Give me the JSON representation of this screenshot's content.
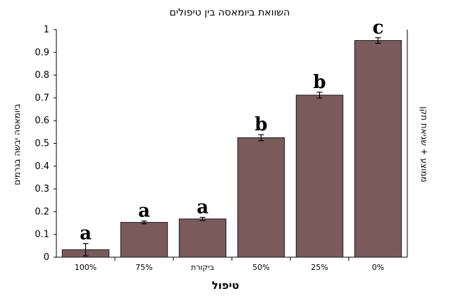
{
  "chart_data": {
    "type": "bar",
    "title": "השוואת ביומאסה בין טיפולים",
    "xlabel": "טיפול",
    "ylabel": "ביומאסה יבשה בגרמים",
    "ylabel_right": "ממוצע + שגיאת תקן",
    "categories": [
      "100%",
      "75%",
      "ביקורת",
      "50%",
      "25%",
      "0%"
    ],
    "values": [
      0.033,
      0.153,
      0.168,
      0.525,
      0.712,
      0.952
    ],
    "errors": [
      0.027,
      0.006,
      0.007,
      0.013,
      0.013,
      0.012
    ],
    "letters": [
      "a",
      "a",
      "a",
      "b",
      "b",
      "c"
    ],
    "ylim": [
      0,
      1
    ],
    "yticks": [
      "0",
      "0.1",
      "0.2",
      "0.3",
      "0.4",
      "0.5",
      "0.6",
      "0.7",
      "0.8",
      "0.9",
      "1"
    ],
    "grid": false,
    "legend": "none",
    "bar_color": "#7b5a5c",
    "bar_outline": "#1a1a1a"
  }
}
